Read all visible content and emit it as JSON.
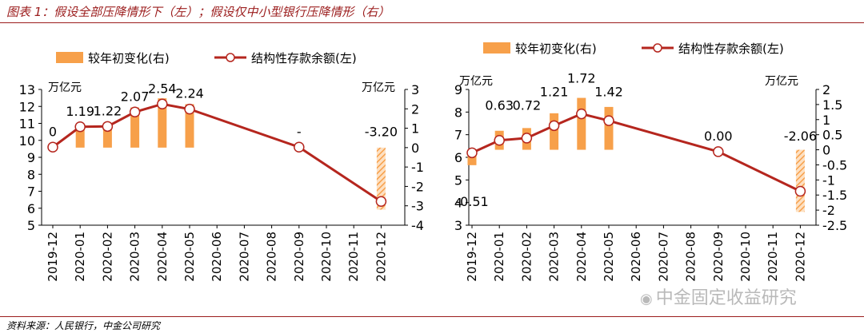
{
  "title": "图表 1：假设全部压降情形下（左）；假设仅中小型银行压降情形（右）",
  "source": "资料来源：人民银行，中金公司研究",
  "watermark": "中金固定收益研究",
  "colors": {
    "bar": "#f7a04a",
    "line": "#b5261e",
    "marker_fill": "#ffffff",
    "hatch_light": "#fde0c2",
    "title": "#9b1c1c"
  },
  "chart_data": [
    {
      "type": "bar+line",
      "legend_placement": "top",
      "legend": {
        "bar": "较年初变化(右)",
        "line": "结构性存款余额(左)"
      },
      "y_left": {
        "unit": "万亿元",
        "min": 5,
        "max": 13,
        "ticks": [
          13,
          12,
          11,
          10,
          9,
          8,
          7,
          6,
          5
        ]
      },
      "y_right": {
        "unit": "万亿元",
        "min": -4,
        "max": 3,
        "ticks": [
          3,
          2,
          1,
          0,
          -1,
          -2,
          -3,
          -4
        ]
      },
      "categories": [
        "2019-12",
        "2020-01",
        "2020-02",
        "2020-03",
        "2020-04",
        "2020-05",
        "2020-06",
        "2020-07",
        "2020-08",
        "2020-09",
        "2020-10",
        "2020-11",
        "2020-12"
      ],
      "line_points": [
        {
          "cat": "2019-12",
          "value": 9.6
        },
        {
          "cat": "2020-01",
          "value": 10.8
        },
        {
          "cat": "2020-02",
          "value": 10.82
        },
        {
          "cat": "2020-03",
          "value": 11.67
        },
        {
          "cat": "2020-04",
          "value": 12.14
        },
        {
          "cat": "2020-05",
          "value": 11.84
        },
        {
          "cat": "2020-09",
          "value": 9.6
        },
        {
          "cat": "2020-12",
          "value": 6.4
        }
      ],
      "bars": [
        {
          "cat": "2020-01",
          "value": 1.19
        },
        {
          "cat": "2020-02",
          "value": 1.22
        },
        {
          "cat": "2020-03",
          "value": 2.07
        },
        {
          "cat": "2020-04",
          "value": 2.54
        },
        {
          "cat": "2020-05",
          "value": 2.24
        },
        {
          "cat": "2020-12",
          "value": -3.2,
          "hatched": true
        }
      ],
      "data_labels": [
        {
          "cat": "2019-12",
          "text": "0",
          "at": 9.6
        },
        {
          "cat": "2020-01",
          "text": "1.19",
          "at": 10.8
        },
        {
          "cat": "2020-02",
          "text": "1.22",
          "at": 10.82
        },
        {
          "cat": "2020-03",
          "text": "2.07",
          "at": 11.67
        },
        {
          "cat": "2020-04",
          "text": "2.54",
          "at": 12.14
        },
        {
          "cat": "2020-05",
          "text": "2.24",
          "at": 11.84
        },
        {
          "cat": "2020-09",
          "text": "-",
          "at": 9.6
        },
        {
          "cat": "2020-12",
          "text": "-3.20",
          "at": 9.6
        }
      ]
    },
    {
      "type": "bar+line",
      "legend_placement": "top",
      "legend": {
        "bar": "较年初变化(右)",
        "line": "结构性存款余额(左)"
      },
      "y_left": {
        "unit": "万亿元",
        "min": 3,
        "max": 9,
        "ticks": [
          9,
          8,
          7,
          6,
          5,
          4,
          3
        ]
      },
      "y_right": {
        "unit": "万亿元",
        "min": -2.5,
        "max": 2,
        "ticks": [
          2,
          1.5,
          1,
          0.5,
          0,
          -0.5,
          -1,
          -1.5,
          -2,
          -2.5
        ]
      },
      "categories": [
        "2019-12",
        "2020-01",
        "2020-02",
        "2020-03",
        "2020-04",
        "2020-05",
        "2020-06",
        "2020-07",
        "2020-08",
        "2020-09",
        "2020-10",
        "2020-11",
        "2020-12"
      ],
      "line_points": [
        {
          "cat": "2019-12",
          "value": 6.2
        },
        {
          "cat": "2020-01",
          "value": 6.75
        },
        {
          "cat": "2020-02",
          "value": 6.85
        },
        {
          "cat": "2020-03",
          "value": 7.4
        },
        {
          "cat": "2020-04",
          "value": 7.92
        },
        {
          "cat": "2020-05",
          "value": 7.62
        },
        {
          "cat": "2020-09",
          "value": 6.25
        },
        {
          "cat": "2020-12",
          "value": 4.5
        }
      ],
      "bars": [
        {
          "cat": "2019-12",
          "value": -0.51
        },
        {
          "cat": "2020-01",
          "value": 0.63
        },
        {
          "cat": "2020-02",
          "value": 0.72
        },
        {
          "cat": "2020-03",
          "value": 1.21
        },
        {
          "cat": "2020-04",
          "value": 1.72
        },
        {
          "cat": "2020-05",
          "value": 1.42
        },
        {
          "cat": "2020-12",
          "value": -2.06,
          "hatched": true
        }
      ],
      "data_labels": [
        {
          "cat": "2019-12",
          "text": "-0.51",
          "at": 4.55,
          "anchor_axis": "left"
        },
        {
          "cat": "2020-01",
          "text": "0.63",
          "at": 7.6
        },
        {
          "cat": "2020-02",
          "text": "0.72",
          "at": 7.6
        },
        {
          "cat": "2020-03",
          "text": "1.21",
          "at": 8.2
        },
        {
          "cat": "2020-04",
          "text": "1.72",
          "at": 8.8
        },
        {
          "cat": "2020-05",
          "text": "1.42",
          "at": 8.2
        },
        {
          "cat": "2020-09",
          "text": "0.00",
          "at": 6.25
        },
        {
          "cat": "2020-12",
          "text": "-2.06",
          "at": 6.25
        }
      ]
    }
  ]
}
